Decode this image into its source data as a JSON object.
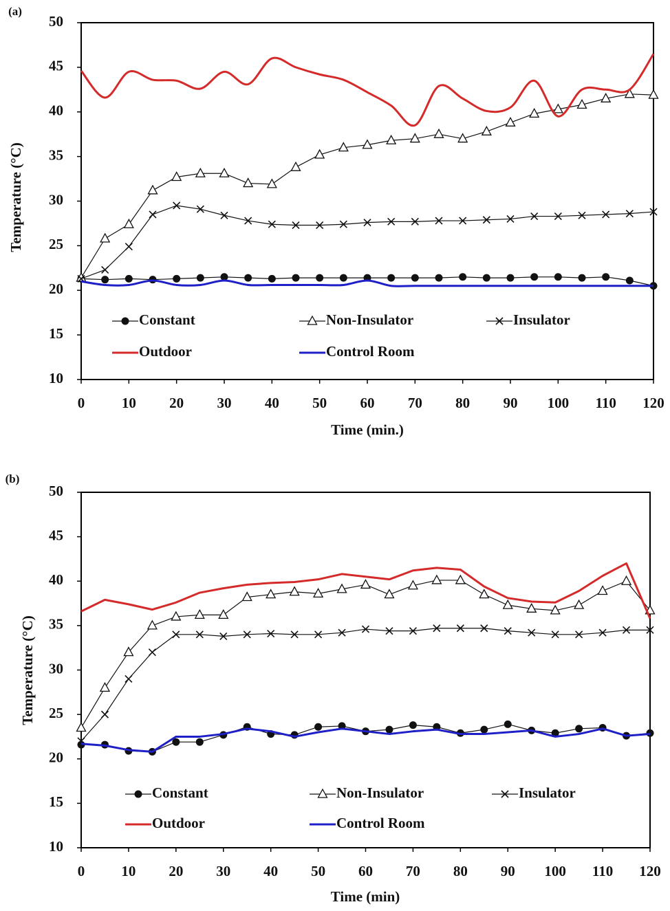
{
  "chart_data": [
    {
      "type": "line",
      "panel_label": "(a)",
      "ylabel": "Temperature (°C)",
      "xlabel": "Time (min.)",
      "x": [
        0,
        5,
        10,
        15,
        20,
        25,
        30,
        35,
        40,
        45,
        50,
        55,
        60,
        65,
        70,
        75,
        80,
        85,
        90,
        95,
        100,
        105,
        110,
        115,
        120
      ],
      "xlim": [
        0,
        120
      ],
      "ylim": [
        10,
        50
      ],
      "xticks": [
        0,
        10,
        20,
        30,
        40,
        50,
        60,
        70,
        80,
        90,
        100,
        110,
        120
      ],
      "yticks": [
        10,
        15,
        20,
        25,
        30,
        35,
        40,
        45,
        50
      ],
      "series": [
        {
          "name": "Constant",
          "color": "#111111",
          "marker": "circle",
          "smooth": false,
          "values": [
            21.3,
            21.2,
            21.3,
            21.2,
            21.3,
            21.4,
            21.5,
            21.4,
            21.3,
            21.4,
            21.4,
            21.4,
            21.4,
            21.4,
            21.4,
            21.4,
            21.5,
            21.4,
            21.4,
            21.5,
            21.5,
            21.4,
            21.5,
            21.1,
            20.5
          ]
        },
        {
          "name": "Non-Insulator",
          "color": "#111111",
          "marker": "triangle",
          "smooth": false,
          "values": [
            21.4,
            25.8,
            27.4,
            31.2,
            32.7,
            33.1,
            33.1,
            32.0,
            31.9,
            33.8,
            35.2,
            36.0,
            36.3,
            36.8,
            37.0,
            37.5,
            37.0,
            37.8,
            38.8,
            39.8,
            40.3,
            40.8,
            41.5,
            42.0,
            41.9
          ]
        },
        {
          "name": "Insulator",
          "color": "#111111",
          "marker": "x",
          "smooth": false,
          "values": [
            21.3,
            22.3,
            24.9,
            28.5,
            29.5,
            29.1,
            28.4,
            27.8,
            27.4,
            27.3,
            27.3,
            27.4,
            27.6,
            27.7,
            27.7,
            27.8,
            27.8,
            27.9,
            28.0,
            28.3,
            28.3,
            28.4,
            28.5,
            28.6,
            28.8
          ]
        },
        {
          "name": "Outdoor",
          "color": "#d42a2a",
          "marker": "none",
          "smooth": true,
          "values": [
            44.6,
            41.6,
            44.5,
            43.6,
            43.5,
            42.6,
            44.5,
            43.1,
            46.0,
            45.0,
            44.2,
            43.6,
            42.2,
            40.7,
            38.5,
            42.9,
            41.5,
            40.1,
            40.5,
            43.5,
            39.5,
            42.5,
            42.5,
            42.5,
            46.5
          ]
        },
        {
          "name": "Control Room",
          "color": "#1f1fc8",
          "marker": "none",
          "smooth": true,
          "values": [
            21.0,
            20.6,
            20.6,
            21.1,
            20.6,
            20.6,
            21.1,
            20.6,
            20.6,
            20.6,
            20.6,
            20.6,
            21.1,
            20.5,
            20.5,
            20.5,
            20.5,
            20.5,
            20.5,
            20.5,
            20.5,
            20.5,
            20.5,
            20.5,
            20.5
          ]
        }
      ]
    },
    {
      "type": "line",
      "panel_label": "(b)",
      "ylabel": "Temperature (°C)",
      "xlabel": "Time (min)",
      "x": [
        0,
        5,
        10,
        15,
        20,
        25,
        30,
        35,
        40,
        45,
        50,
        55,
        60,
        65,
        70,
        75,
        80,
        85,
        90,
        95,
        100,
        105,
        110,
        115,
        120
      ],
      "xlim": [
        0,
        120
      ],
      "ylim": [
        10,
        50
      ],
      "xticks": [
        0,
        10,
        20,
        30,
        40,
        50,
        60,
        70,
        80,
        90,
        100,
        110,
        120
      ],
      "yticks": [
        10,
        15,
        20,
        25,
        30,
        35,
        40,
        45,
        50
      ],
      "series": [
        {
          "name": "Constant",
          "color": "#111111",
          "marker": "circle",
          "smooth": false,
          "values": [
            21.6,
            21.6,
            20.9,
            20.8,
            21.9,
            21.9,
            22.7,
            23.6,
            22.8,
            22.7,
            23.6,
            23.7,
            23.1,
            23.3,
            23.8,
            23.6,
            22.9,
            23.3,
            23.9,
            23.2,
            22.9,
            23.4,
            23.5,
            22.6,
            22.9
          ]
        },
        {
          "name": "Non-Insulator",
          "color": "#111111",
          "marker": "triangle",
          "smooth": false,
          "values": [
            23.5,
            28.0,
            32.0,
            35.0,
            36.0,
            36.2,
            36.2,
            38.2,
            38.5,
            38.8,
            38.6,
            39.1,
            39.6,
            38.5,
            39.5,
            40.1,
            40.1,
            38.5,
            37.3,
            36.9,
            36.7,
            37.3,
            38.9,
            40.0,
            36.7
          ]
        },
        {
          "name": "Insulator",
          "color": "#111111",
          "marker": "x",
          "smooth": false,
          "values": [
            22.0,
            25.0,
            29.0,
            32.0,
            34.0,
            34.0,
            33.8,
            34.0,
            34.1,
            34.0,
            34.0,
            34.2,
            34.6,
            34.4,
            34.4,
            34.7,
            34.7,
            34.7,
            34.4,
            34.2,
            34.0,
            34.0,
            34.2,
            34.5,
            34.5
          ]
        },
        {
          "name": "Outdoor",
          "color": "#d42a2a",
          "marker": "none",
          "smooth": false,
          "values": [
            36.6,
            37.9,
            37.4,
            36.8,
            37.6,
            38.7,
            39.2,
            39.6,
            39.8,
            39.9,
            40.2,
            40.8,
            40.5,
            40.2,
            41.2,
            41.5,
            41.3,
            39.4,
            38.1,
            37.7,
            37.6,
            38.9,
            40.6,
            42.0,
            35.8
          ]
        },
        {
          "name": "Control Room",
          "color": "#1f1fc8",
          "marker": "none",
          "smooth": false,
          "values": [
            21.7,
            21.5,
            21.0,
            20.8,
            22.5,
            22.5,
            22.8,
            23.4,
            23.1,
            22.5,
            23.0,
            23.4,
            23.1,
            22.8,
            23.1,
            23.3,
            22.8,
            22.8,
            23.0,
            23.2,
            22.5,
            22.8,
            23.4,
            22.6,
            22.8
          ]
        }
      ]
    }
  ]
}
